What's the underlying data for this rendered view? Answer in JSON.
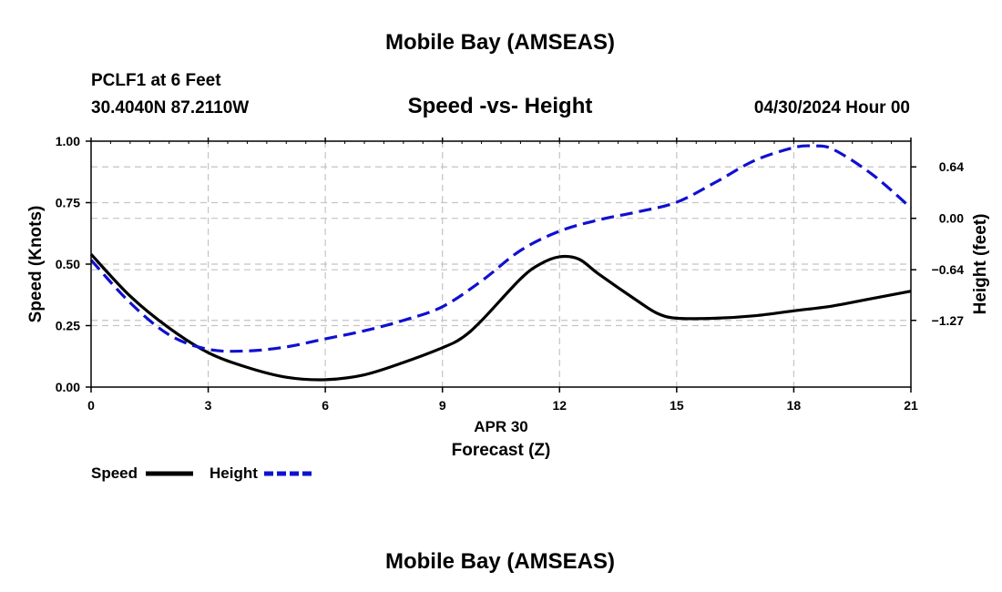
{
  "chart_data": {
    "type": "line",
    "title": "Mobile Bay (AMSEAS)",
    "footer_title": "Mobile Bay (AMSEAS)",
    "subtitle": "Speed -vs- Height",
    "station": "PCLF1 at 6 Feet",
    "location": "30.4040N  87.2110W",
    "timestamp": "04/30/2024 Hour 00",
    "xlabel": "Forecast (Z)",
    "xlabel_date": "APR 30",
    "ylabel_left": "Speed (Knots)",
    "ylabel_right": "Height (feet)",
    "xlim": [
      0,
      21
    ],
    "ylim_left": [
      0,
      1
    ],
    "ylim_right": [
      -2.1,
      0.96
    ],
    "x_ticks": [
      0,
      3,
      6,
      9,
      12,
      15,
      18,
      21
    ],
    "x_tick_labels": [
      "0",
      "3",
      "6",
      "9",
      "12",
      "15",
      "18",
      "21"
    ],
    "y_left_ticks": [
      0,
      0.25,
      0.5,
      0.75,
      1.0
    ],
    "y_left_tick_labels": [
      "0.00",
      "0.25",
      "0.50",
      "0.75",
      "1.00"
    ],
    "y_right_ticks": [
      -1.27,
      -0.64,
      0.0,
      0.64
    ],
    "y_right_tick_labels": [
      "−1.27",
      "−0.64",
      "0.00",
      "0.64"
    ],
    "grid": true,
    "series": [
      {
        "name": "Speed",
        "axis": "left",
        "color": "#000000",
        "dash": "solid",
        "x": [
          0,
          1,
          2,
          3,
          4,
          5,
          6,
          7,
          8,
          9,
          9.5,
          10,
          11,
          11.5,
          12,
          12.5,
          13,
          14,
          14.5,
          15,
          16,
          17,
          18,
          19,
          20,
          21
        ],
        "values": [
          0.54,
          0.37,
          0.24,
          0.14,
          0.08,
          0.04,
          0.03,
          0.05,
          0.1,
          0.16,
          0.2,
          0.27,
          0.44,
          0.5,
          0.53,
          0.52,
          0.46,
          0.35,
          0.3,
          0.28,
          0.28,
          0.29,
          0.31,
          0.33,
          0.36,
          0.39
        ]
      },
      {
        "name": "Height",
        "axis": "right",
        "color": "#1010d0",
        "dash": "dashed",
        "x": [
          0,
          1,
          2,
          3,
          4,
          5,
          6,
          7,
          8,
          9,
          10,
          11,
          12,
          13,
          14,
          15,
          16,
          17,
          18,
          18.5,
          19,
          20,
          21
        ],
        "values": [
          -0.52,
          -1.05,
          -1.45,
          -1.63,
          -1.65,
          -1.6,
          -1.5,
          -1.4,
          -1.27,
          -1.1,
          -0.78,
          -0.4,
          -0.16,
          -0.02,
          0.08,
          0.2,
          0.45,
          0.72,
          0.88,
          0.9,
          0.86,
          0.55,
          0.13
        ]
      }
    ],
    "legend": [
      {
        "label": "Speed",
        "color": "#000000",
        "dash": "solid"
      },
      {
        "label": "Height",
        "color": "#1010d0",
        "dash": "dashed"
      }
    ],
    "legend_position": "bottom-left"
  }
}
